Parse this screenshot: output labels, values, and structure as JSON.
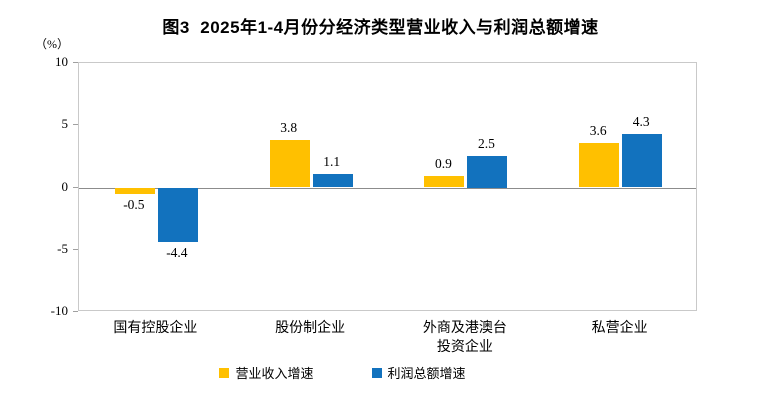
{
  "title": "图3  2025年1-4月份分经济类型营业收入与利润总额增速",
  "colors": {
    "revenue_series": "#FFC000",
    "profit_series": "#1272BE",
    "plot_border": "#C9C9C9",
    "zero_line": "#8C8C8C",
    "text": "#000000"
  },
  "chart_data": {
    "type": "bar",
    "title": "图3  2025年1-4月份分经济类型营业收入与利润总额增速",
    "ylabel": "（%）",
    "xlabel": "",
    "ylim": [
      -10,
      10
    ],
    "yticks": [
      10,
      5,
      0,
      -5,
      -10
    ],
    "grid": false,
    "legend_position": "bottom",
    "categories": [
      "国有控股企业",
      "股份制企业",
      "外商及港澳台\n投资企业",
      "私营企业"
    ],
    "series": [
      {
        "name": "营业收入增速",
        "color": "#FFC000",
        "values": [
          -0.5,
          3.8,
          0.9,
          3.6
        ]
      },
      {
        "name": "利润总额增速",
        "color": "#1272BE",
        "values": [
          -4.4,
          1.1,
          2.5,
          4.3
        ]
      }
    ]
  }
}
